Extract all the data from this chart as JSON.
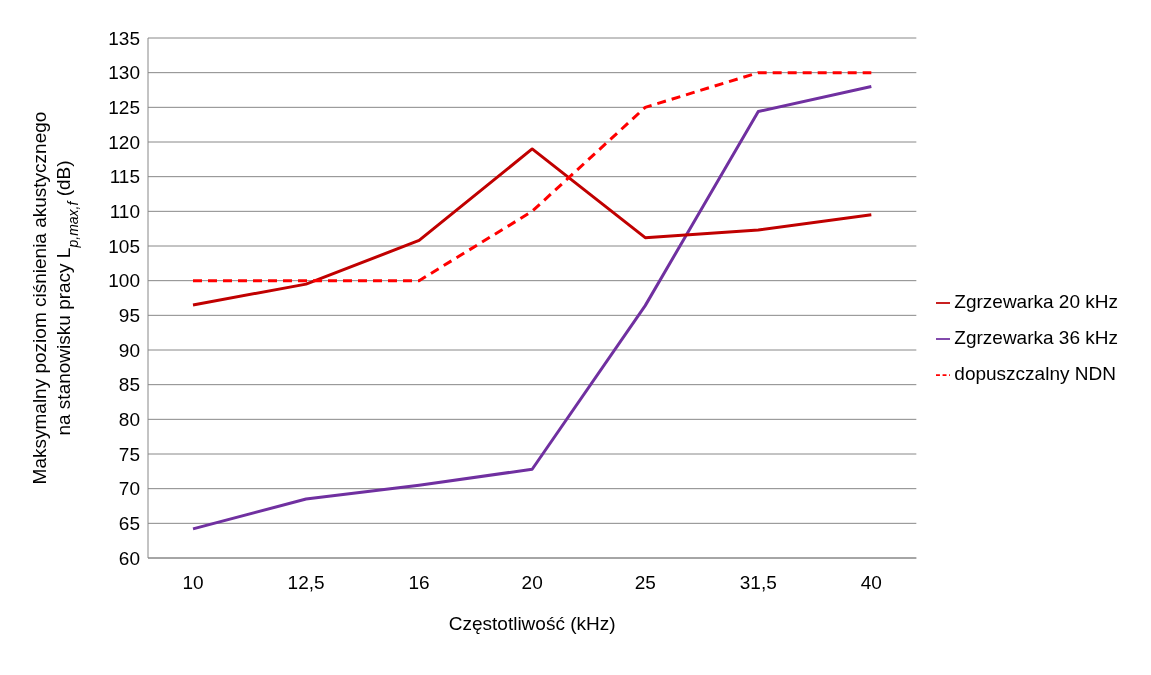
{
  "chart_data": {
    "type": "line",
    "xlabel": "Częstotliwość  (kHz)",
    "ylabel": "Maksymalny poziom ciśnienia akustycznego na stanowisku pracy L$_{p,max,f}$  (dB)",
    "categories": [
      "10",
      "12,5",
      "16",
      "20",
      "25",
      "31,5",
      "40"
    ],
    "series": [
      {
        "name": "Zgrzewarka 36 kHz",
        "color": "#7030a0",
        "line_style": "solid",
        "values": [
          64.2,
          68.5,
          70.5,
          72.8,
          96.4,
          124.4,
          128
        ]
      },
      {
        "name": "Zgrzewarka 20 kHz",
        "color": "#c00000",
        "line_style": "solid",
        "values": [
          96.5,
          99.5,
          105.8,
          119,
          106.2,
          107.3,
          109.5
        ]
      },
      {
        "name": "dopuszczalny NDN",
        "color": "#ff0000",
        "line_style": "dashed",
        "values": [
          100,
          100,
          100,
          110,
          125,
          130,
          130
        ]
      }
    ],
    "ylim": [
      60,
      135
    ],
    "yticks": [
      60,
      65,
      70,
      75,
      80,
      85,
      90,
      95,
      100,
      105,
      110,
      115,
      120,
      125,
      130,
      135
    ],
    "grid": "y",
    "legend": "right",
    "marker": "none"
  }
}
